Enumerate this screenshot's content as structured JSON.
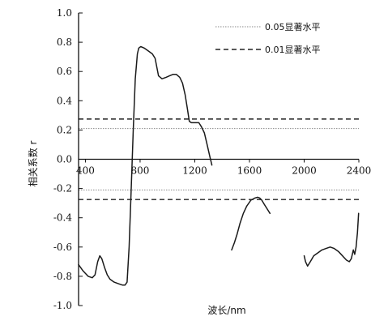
{
  "chart_data": {
    "type": "line",
    "xlabel": "波长/nm",
    "ylabel": "相关系数 r",
    "xlim": [
      350,
      2400
    ],
    "ylim": [
      -1.0,
      1.0
    ],
    "x_ticks": [
      400,
      800,
      1200,
      1600,
      2000,
      2400
    ],
    "y_ticks": [
      1.0,
      0.8,
      0.6,
      0.4,
      0.2,
      0.0,
      -0.2,
      -0.4,
      -0.6,
      -0.8,
      -1.0
    ],
    "x_tick_labels": [
      "400",
      "800",
      "1200",
      "1600",
      "2000",
      "2400"
    ],
    "y_tick_labels": [
      "1.0",
      "0.8",
      "0.6",
      "0.4",
      "0.2",
      "0.0",
      "-0.2",
      "-0.4",
      "-0.6",
      "-0.8",
      "-1.0"
    ],
    "grid": false,
    "legend_position": "top-right",
    "reference_lines": [
      {
        "name": "0.05显著水平",
        "style": "dotted",
        "values": [
          0.21,
          -0.21
        ]
      },
      {
        "name": "0.01显著水平",
        "style": "dashed",
        "values": [
          0.275,
          -0.275
        ]
      }
    ],
    "series": [
      {
        "segments": [
          [
            [
              350,
              -0.72
            ],
            [
              380,
              -0.76
            ],
            [
              420,
              -0.8
            ],
            [
              450,
              -0.81
            ],
            [
              470,
              -0.79
            ],
            [
              490,
              -0.7
            ],
            [
              505,
              -0.66
            ],
            [
              520,
              -0.68
            ],
            [
              540,
              -0.74
            ],
            [
              560,
              -0.79
            ],
            [
              580,
              -0.82
            ],
            [
              610,
              -0.84
            ],
            [
              640,
              -0.85
            ],
            [
              670,
              -0.86
            ],
            [
              690,
              -0.86
            ],
            [
              705,
              -0.84
            ],
            [
              720,
              -0.6
            ],
            [
              735,
              -0.2
            ],
            [
              750,
              0.2
            ],
            [
              765,
              0.55
            ],
            [
              780,
              0.72
            ],
            [
              790,
              0.76
            ],
            [
              805,
              0.77
            ],
            [
              830,
              0.76
            ],
            [
              860,
              0.74
            ],
            [
              890,
              0.72
            ],
            [
              910,
              0.69
            ],
            [
              935,
              0.57
            ],
            [
              960,
              0.55
            ],
            [
              990,
              0.56
            ],
            [
              1015,
              0.57
            ],
            [
              1040,
              0.58
            ],
            [
              1065,
              0.58
            ],
            [
              1090,
              0.56
            ],
            [
              1110,
              0.52
            ],
            [
              1130,
              0.44
            ],
            [
              1145,
              0.35
            ],
            [
              1160,
              0.26
            ],
            [
              1175,
              0.25
            ],
            [
              1200,
              0.25
            ],
            [
              1230,
              0.25
            ],
            [
              1250,
              0.22
            ],
            [
              1270,
              0.18
            ],
            [
              1290,
              0.1
            ],
            [
              1310,
              0.02
            ],
            [
              1325,
              -0.04
            ]
          ],
          [
            [
              1470,
              -0.62
            ],
            [
              1490,
              -0.57
            ],
            [
              1510,
              -0.51
            ],
            [
              1530,
              -0.44
            ],
            [
              1555,
              -0.37
            ],
            [
              1580,
              -0.32
            ],
            [
              1610,
              -0.28
            ],
            [
              1640,
              -0.265
            ],
            [
              1660,
              -0.26
            ],
            [
              1675,
              -0.265
            ],
            [
              1690,
              -0.28
            ],
            [
              1710,
              -0.31
            ],
            [
              1730,
              -0.34
            ],
            [
              1750,
              -0.37
            ]
          ],
          [
            [
              2000,
              -0.66
            ],
            [
              2010,
              -0.7
            ],
            [
              2025,
              -0.73
            ],
            [
              2045,
              -0.7
            ],
            [
              2070,
              -0.66
            ],
            [
              2100,
              -0.64
            ],
            [
              2130,
              -0.62
            ],
            [
              2160,
              -0.61
            ],
            [
              2190,
              -0.6
            ],
            [
              2220,
              -0.61
            ],
            [
              2250,
              -0.63
            ],
            [
              2270,
              -0.65
            ],
            [
              2290,
              -0.67
            ],
            [
              2310,
              -0.69
            ],
            [
              2330,
              -0.7
            ],
            [
              2345,
              -0.68
            ],
            [
              2360,
              -0.62
            ],
            [
              2370,
              -0.65
            ],
            [
              2380,
              -0.6
            ],
            [
              2390,
              -0.5
            ],
            [
              2398,
              -0.37
            ]
          ]
        ]
      }
    ]
  }
}
